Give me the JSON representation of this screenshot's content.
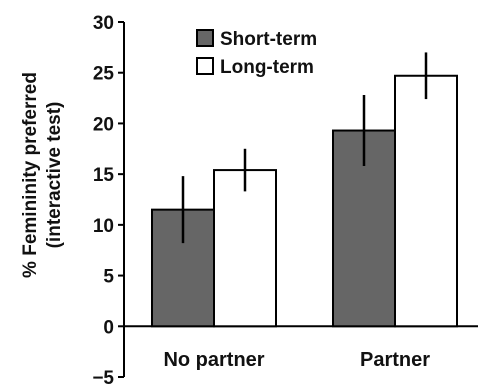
{
  "chart_data": {
    "type": "bar",
    "categories": [
      "No partner",
      "Partner"
    ],
    "series": [
      {
        "name": "Short-term",
        "values": [
          11.5,
          19.3
        ],
        "errors": [
          3.3,
          3.5
        ],
        "color": "#666666"
      },
      {
        "name": "Long-term",
        "values": [
          15.4,
          24.7
        ],
        "errors": [
          2.1,
          2.3
        ],
        "color": "#ffffff"
      }
    ],
    "ylabel_line1": "% Femininity preferred",
    "ylabel_line2": "(interactive test)",
    "ylim": [
      -5,
      30
    ],
    "yticks": [
      "-5",
      "0",
      "5",
      "10",
      "15",
      "20",
      "25",
      "30"
    ],
    "legend_position": "top-center",
    "grid": false
  }
}
